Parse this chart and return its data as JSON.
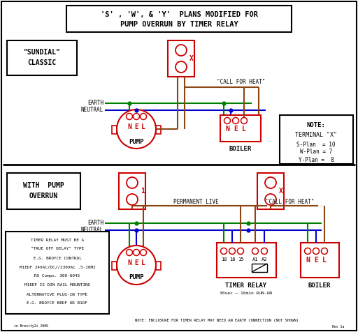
{
  "colors": {
    "red": "#cc0000",
    "green": "#008000",
    "blue": "#0000cc",
    "brown": "#8B4513",
    "black": "#000000",
    "white": "#ffffff"
  },
  "title_line1": "'S' , 'W', & 'Y'  PLANS MODIFIED FOR",
  "title_line2": "PUMP OVERRUN BY TIMER RELAY",
  "sundial_label1": "\"SUNDIAL\"",
  "sundial_label2": "CLASSIC",
  "with_pump1": "WITH  PUMP",
  "with_pump2": "OVERRUN",
  "pump_label": "PUMP",
  "boiler_label": "BOILER",
  "timer_label": "TIMER RELAY",
  "timer_sub": "30sec ~ 10min RUN-ON",
  "call_heat": "\"CALL FOR HEAT\"",
  "perm_live": "PERMANENT LIVE",
  "earth_lbl": "EARTH",
  "neutral_lbl": "NEUTRAL",
  "note_title": "NOTE:",
  "note_line1": "TERMINAL \"X\"",
  "note_line2": "S-Plan  = 10",
  "note_line3": "W-Plan = 7",
  "note_line4": "Y-Plan =  8",
  "timer_notes": [
    "TIMER RELAY MUST BE A",
    "\"TRUE OFF DELAY\" TYPE",
    "E.G. BROYCE CONTROL",
    "M1EDF 24VAC/DC//230VAC .5-10MI",
    "RS Comps. 300-6045",
    "M1EDF IS DIN RAIL MOUNTING",
    "ALTERNATIVE PLUG-IN TYPE",
    "E.G. BROYCE B8DF OR B1DF"
  ],
  "bottom_note": "NOTE: ENCLOSURE FOR TIMER RELAY MAY NEED AN EARTH CONNECTION (NOT SHOWN)",
  "ver1": "in Brevity2i 2009",
  "ver2": "Rev 1a"
}
